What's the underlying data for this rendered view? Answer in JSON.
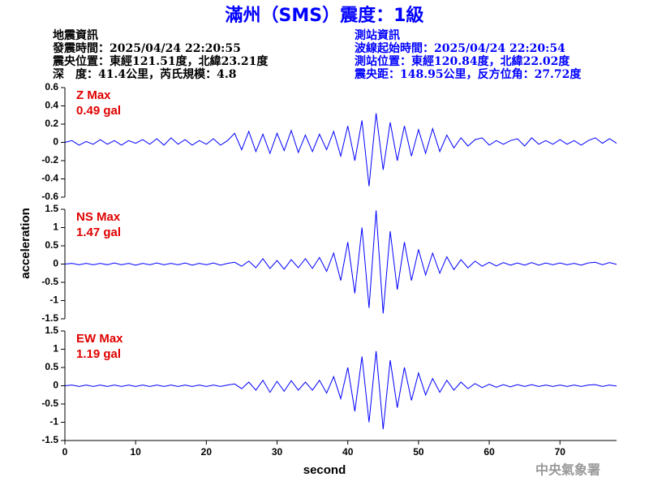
{
  "title": "滿州（SMS）震度：1級",
  "event_info": {
    "heading": "地震資訊",
    "time": "發震時間：2025/04/24 22:20:55",
    "location": "震央位置：東經121.51度，北緯23.21度",
    "depth": "深　度：41.4公里，芮氏規模：4.8"
  },
  "station_info": {
    "heading": "測站資訊",
    "time": "波線起始時間：2025/04/24 22:20:54",
    "location": "測站位置：東經120.84度，北緯22.02度",
    "distance": "震央距：148.95公里，反方位角：27.72度"
  },
  "ylabel": "acceleration",
  "xlabel": "second",
  "credit": "中央氣象署",
  "chart_data": [
    {
      "type": "line",
      "annotation": "Z Max",
      "max_label": "0.49 gal",
      "color": "#0000ff",
      "x": [
        0,
        1,
        2,
        3,
        4,
        5,
        6,
        7,
        8,
        9,
        10,
        11,
        12,
        13,
        14,
        15,
        16,
        17,
        18,
        19,
        20,
        21,
        22,
        23,
        24,
        25,
        26,
        27,
        28,
        29,
        30,
        31,
        32,
        33,
        34,
        35,
        36,
        37,
        38,
        39,
        40,
        41,
        42,
        43,
        44,
        45,
        46,
        47,
        48,
        49,
        50,
        51,
        52,
        53,
        54,
        55,
        56,
        57,
        58,
        59,
        60,
        61,
        62,
        63,
        64,
        65,
        66,
        67,
        68,
        69,
        70,
        71,
        72,
        73,
        74,
        75,
        76,
        77,
        78
      ],
      "values": [
        0,
        0.02,
        -0.03,
        0.01,
        -0.02,
        0.03,
        -0.02,
        0.02,
        -0.03,
        0.02,
        -0.01,
        0.03,
        -0.02,
        0.04,
        -0.03,
        0.05,
        -0.02,
        0.03,
        -0.03,
        0.02,
        -0.02,
        0.04,
        -0.03,
        0.02,
        0.1,
        -0.08,
        0.12,
        -0.1,
        0.09,
        -0.12,
        0.1,
        -0.09,
        0.13,
        -0.11,
        0.08,
        -0.1,
        0.09,
        -0.08,
        0.12,
        -0.15,
        0.18,
        -0.2,
        0.24,
        -0.48,
        0.32,
        -0.3,
        0.22,
        -0.2,
        0.18,
        -0.15,
        0.14,
        -0.12,
        0.15,
        -0.1,
        0.08,
        -0.06,
        0.05,
        -0.04,
        0.03,
        0.05,
        -0.03,
        0.02,
        -0.02,
        0.02,
        0.04,
        -0.04,
        0.05,
        -0.02,
        0.02,
        -0.02,
        0.03,
        -0.02,
        0.02,
        -0.03,
        0.02,
        0.05,
        -0.01,
        0.04,
        -0.01
      ],
      "xlim": [
        0,
        78
      ],
      "ylim": [
        -0.6,
        0.6
      ],
      "yticks": [
        -0.6,
        -0.4,
        -0.2,
        0,
        0.2,
        0.4,
        0.6
      ]
    },
    {
      "type": "line",
      "annotation": "NS Max",
      "max_label": "1.47 gal",
      "color": "#0000ff",
      "x": [
        0,
        1,
        2,
        3,
        4,
        5,
        6,
        7,
        8,
        9,
        10,
        11,
        12,
        13,
        14,
        15,
        16,
        17,
        18,
        19,
        20,
        21,
        22,
        23,
        24,
        25,
        26,
        27,
        28,
        29,
        30,
        31,
        32,
        33,
        34,
        35,
        36,
        37,
        38,
        39,
        40,
        41,
        42,
        43,
        44,
        45,
        46,
        47,
        48,
        49,
        50,
        51,
        52,
        53,
        54,
        55,
        56,
        57,
        58,
        59,
        60,
        61,
        62,
        63,
        64,
        65,
        66,
        67,
        68,
        69,
        70,
        71,
        72,
        73,
        74,
        75,
        76,
        77,
        78
      ],
      "values": [
        0,
        0.02,
        -0.02,
        0.02,
        -0.02,
        0.02,
        -0.02,
        0.03,
        -0.02,
        0.02,
        -0.03,
        0.02,
        -0.02,
        0.03,
        -0.02,
        0.02,
        -0.02,
        0.03,
        -0.03,
        0.02,
        -0.02,
        0.03,
        -0.03,
        0.02,
        0.05,
        -0.06,
        0.08,
        -0.1,
        0.15,
        -0.12,
        0.1,
        -0.14,
        0.12,
        -0.1,
        0.15,
        -0.12,
        0.18,
        -0.2,
        0.3,
        -0.45,
        0.6,
        -0.8,
        1.0,
        -1.2,
        1.47,
        -1.35,
        0.9,
        -0.7,
        0.6,
        -0.45,
        0.4,
        -0.3,
        0.3,
        -0.25,
        0.2,
        -0.15,
        0.12,
        -0.1,
        0.08,
        -0.06,
        0.05,
        -0.05,
        0.04,
        -0.03,
        0.03,
        -0.03,
        0.04,
        -0.03,
        0.03,
        -0.02,
        0.03,
        -0.02,
        0.02,
        -0.03,
        0.03,
        0.05,
        -0.02,
        0.04,
        -0.01
      ],
      "xlim": [
        0,
        78
      ],
      "ylim": [
        -1.5,
        1.5
      ],
      "yticks": [
        -1.5,
        -1,
        -0.5,
        0,
        0.5,
        1,
        1.5
      ]
    },
    {
      "type": "line",
      "annotation": "EW Max",
      "max_label": "1.19 gal",
      "color": "#0000ff",
      "x": [
        0,
        1,
        2,
        3,
        4,
        5,
        6,
        7,
        8,
        9,
        10,
        11,
        12,
        13,
        14,
        15,
        16,
        17,
        18,
        19,
        20,
        21,
        22,
        23,
        24,
        25,
        26,
        27,
        28,
        29,
        30,
        31,
        32,
        33,
        34,
        35,
        36,
        37,
        38,
        39,
        40,
        41,
        42,
        43,
        44,
        45,
        46,
        47,
        48,
        49,
        50,
        51,
        52,
        53,
        54,
        55,
        56,
        57,
        58,
        59,
        60,
        61,
        62,
        63,
        64,
        65,
        66,
        67,
        68,
        69,
        70,
        71,
        72,
        73,
        74,
        75,
        76,
        77,
        78
      ],
      "values": [
        0,
        0.02,
        -0.02,
        0.02,
        -0.02,
        0.02,
        -0.02,
        0.02,
        -0.02,
        0.02,
        -0.02,
        0.02,
        -0.02,
        0.02,
        -0.02,
        0.02,
        -0.02,
        0.02,
        -0.02,
        0.02,
        -0.02,
        0.02,
        -0.02,
        0.02,
        0.05,
        -0.08,
        0.1,
        -0.12,
        0.15,
        -0.18,
        0.12,
        -0.15,
        0.14,
        -0.12,
        0.1,
        -0.12,
        0.15,
        -0.2,
        0.25,
        -0.35,
        0.5,
        -0.7,
        0.8,
        -1.0,
        0.95,
        -1.19,
        0.7,
        -0.6,
        0.5,
        -0.4,
        0.35,
        -0.25,
        0.2,
        -0.18,
        0.15,
        -0.12,
        0.1,
        -0.08,
        0.06,
        -0.05,
        0.04,
        -0.04,
        0.03,
        -0.03,
        0.03,
        -0.02,
        0.03,
        -0.02,
        0.02,
        -0.02,
        0.02,
        -0.02,
        0.02,
        -0.02,
        0.02,
        0.03,
        -0.02,
        0.02,
        -0.01
      ],
      "xlim": [
        0,
        78
      ],
      "xticks": [
        0,
        10,
        20,
        30,
        40,
        50,
        60,
        70
      ],
      "ylim": [
        -1.5,
        1.5
      ],
      "yticks": [
        -1.5,
        -1,
        -0.5,
        0,
        0.5,
        1,
        1.5
      ]
    }
  ]
}
